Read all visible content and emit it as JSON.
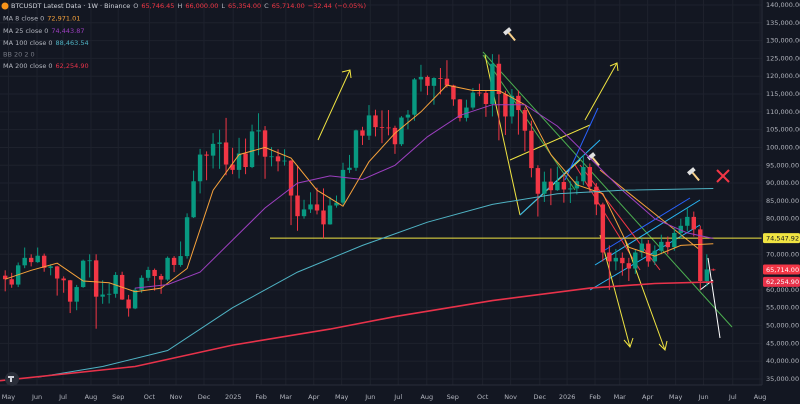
{
  "chart_data": {
    "type": "candlestick",
    "title": "BTCUSDT Latest Data · 1W · Binance",
    "ohlc_legend": [
      {
        "key": "O",
        "value": 65746.45,
        "label": "65,746.45"
      },
      {
        "key": "H",
        "value": 66000,
        "label": "66,000.00"
      },
      {
        "key": "L",
        "value": 65354,
        "label": "65,354.00"
      },
      {
        "key": "C",
        "value": 65714,
        "label": "65,714.00"
      }
    ],
    "change": {
      "value": -32.44,
      "label": "−32.44"
    },
    "change_percent": {
      "value": -0.05,
      "label": "(−0.05%)"
    },
    "up_color": "#089981",
    "down_color": "#f23645",
    "ohlc": [
      [
        64000,
        65500,
        59600,
        63000
      ],
      [
        63000,
        64800,
        60600,
        61500
      ],
      [
        61500,
        67700,
        60800,
        66900
      ],
      [
        66900,
        71900,
        66100,
        69000
      ],
      [
        69000,
        70000,
        66600,
        67800
      ],
      [
        67800,
        71900,
        67600,
        69600
      ],
      [
        69600,
        70200,
        65100,
        66200
      ],
      [
        66200,
        67200,
        64100,
        66600
      ],
      [
        66600,
        66800,
        58400,
        63200
      ],
      [
        63200,
        63800,
        59200,
        62700
      ],
      [
        62700,
        62800,
        53500,
        56700
      ],
      [
        56700,
        61400,
        54300,
        60800
      ],
      [
        60800,
        68500,
        60600,
        68200
      ],
      [
        68200,
        70000,
        63500,
        68300
      ],
      [
        68300,
        70000,
        49100,
        58100
      ],
      [
        58100,
        62700,
        56100,
        58700
      ],
      [
        58700,
        61800,
        56200,
        58900
      ],
      [
        58900,
        65000,
        57800,
        64200
      ],
      [
        64200,
        65100,
        57200,
        57300
      ],
      [
        57300,
        58600,
        52500,
        54800
      ],
      [
        54800,
        60600,
        54600,
        60000
      ],
      [
        60000,
        64100,
        59200,
        63400
      ],
      [
        63400,
        66500,
        62500,
        65600
      ],
      [
        65600,
        66000,
        59800,
        63900
      ],
      [
        63900,
        64500,
        58900,
        62900
      ],
      [
        62900,
        69400,
        62500,
        69000
      ],
      [
        69000,
        69500,
        65000,
        67000
      ],
      [
        67000,
        73600,
        66500,
        69500
      ],
      [
        69500,
        81500,
        68800,
        80400
      ],
      [
        80400,
        93500,
        80200,
        90500
      ],
      [
        90500,
        99600,
        87100,
        98000
      ],
      [
        98000,
        98900,
        90800,
        97700
      ],
      [
        97700,
        104000,
        94100,
        101000
      ],
      [
        101000,
        105000,
        94000,
        101400
      ],
      [
        101400,
        108300,
        92200,
        95200
      ],
      [
        95200,
        99900,
        92500,
        93700
      ],
      [
        93700,
        102700,
        91300,
        98300
      ],
      [
        98300,
        102500,
        92500,
        94500
      ],
      [
        94500,
        106400,
        94200,
        104500
      ],
      [
        104500,
        109600,
        97800,
        104800
      ],
      [
        104800,
        106000,
        91200,
        97400
      ],
      [
        97400,
        100100,
        94700,
        97500
      ],
      [
        97500,
        99500,
        93300,
        96100
      ],
      [
        96100,
        99500,
        94900,
        96300
      ],
      [
        96300,
        96500,
        78200,
        86500
      ],
      [
        86500,
        95000,
        76600,
        80700
      ],
      [
        80700,
        85300,
        80000,
        82600
      ],
      [
        82600,
        87400,
        81600,
        84000
      ],
      [
        84000,
        88700,
        81200,
        82300
      ],
      [
        82300,
        88500,
        74500,
        78400
      ],
      [
        78400,
        86100,
        78300,
        83700
      ],
      [
        83700,
        86500,
        83100,
        84500
      ],
      [
        84500,
        95700,
        83900,
        93700
      ],
      [
        93700,
        97900,
        92800,
        94300
      ],
      [
        94300,
        105000,
        93400,
        104800
      ],
      [
        104800,
        105800,
        100700,
        103300
      ],
      [
        103300,
        111900,
        102100,
        109000
      ],
      [
        109000,
        110600,
        103100,
        105700
      ],
      [
        105700,
        110400,
        101200,
        105600
      ],
      [
        105600,
        110500,
        103400,
        105500
      ],
      [
        105500,
        106100,
        98200,
        100900
      ],
      [
        100900,
        108800,
        100400,
        108400
      ],
      [
        108400,
        110500,
        105100,
        109200
      ],
      [
        109200,
        119500,
        107500,
        119100
      ],
      [
        119100,
        123200,
        115700,
        119800
      ],
      [
        119800,
        120200,
        114700,
        117300
      ],
      [
        117300,
        119700,
        112000,
        119500
      ],
      [
        119500,
        122300,
        114900,
        119300
      ],
      [
        119300,
        124500,
        116800,
        117400
      ],
      [
        117400,
        117600,
        111700,
        113500
      ],
      [
        113500,
        113600,
        107300,
        108300
      ],
      [
        108300,
        113400,
        107300,
        111200
      ],
      [
        111200,
        116700,
        110600,
        115400
      ],
      [
        115400,
        117900,
        114400,
        115300
      ],
      [
        115300,
        115900,
        108600,
        112200
      ],
      [
        112200,
        126200,
        108700,
        123500
      ],
      [
        123500,
        126100,
        102000,
        115000
      ],
      [
        115000,
        115900,
        103500,
        108700
      ],
      [
        108700,
        116400,
        106700,
        114500
      ],
      [
        114500,
        116000,
        103600,
        110500
      ],
      [
        110500,
        111200,
        98900,
        104700
      ],
      [
        104700,
        107500,
        91600,
        94200
      ],
      [
        94200,
        95000,
        80600,
        87000
      ],
      [
        87000,
        93200,
        84700,
        90400
      ],
      [
        90400,
        94100,
        83800,
        88000
      ],
      [
        88000,
        94600,
        87800,
        90300
      ],
      [
        90300,
        92600,
        84500,
        88200
      ],
      [
        88200,
        90500,
        84400,
        88500
      ],
      [
        88500,
        91900,
        86800,
        90500
      ],
      [
        90500,
        97900,
        89400,
        94500
      ],
      [
        94500,
        95500,
        87300,
        89000
      ],
      [
        89000,
        90000,
        81000,
        84000
      ],
      [
        84000,
        84500,
        68000,
        70500
      ],
      [
        70500,
        72500,
        60000,
        68000
      ],
      [
        68000,
        71500,
        65500,
        69000
      ],
      [
        69000,
        70500,
        64000,
        67500
      ],
      [
        67500,
        69000,
        62500,
        66000
      ],
      [
        66000,
        71500,
        64500,
        70500
      ],
      [
        70500,
        74500,
        69000,
        73000
      ],
      [
        73000,
        74000,
        66500,
        68000
      ],
      [
        68000,
        72500,
        67000,
        71000
      ],
      [
        71000,
        75500,
        70000,
        73500
      ],
      [
        73500,
        75000,
        70000,
        72000
      ],
      [
        72000,
        77500,
        71000,
        76000
      ],
      [
        76000,
        80000,
        74500,
        78000
      ],
      [
        78000,
        83000,
        76500,
        80500
      ],
      [
        80500,
        82000,
        75000,
        77000
      ],
      [
        77000,
        78000,
        60000,
        62500
      ],
      [
        62500,
        70000,
        61000,
        65746.45
      ],
      [
        65746.45,
        66000,
        65354,
        65714
      ]
    ],
    "indicators": [
      {
        "name": "MA 8 close 0",
        "value": 72971.01,
        "value_label": "72,971.01",
        "color": "#f7a23b",
        "x": [
          0,
          4,
          8,
          12,
          16,
          20,
          24,
          28,
          32,
          36,
          40,
          44,
          48,
          52,
          56,
          60,
          64,
          68,
          72,
          76,
          80,
          84,
          88,
          92,
          96,
          100,
          104,
          109
        ],
        "values": [
          63000,
          65500,
          67500,
          62500,
          62000,
          59500,
          60500,
          66000,
          88000,
          98000,
          100000,
          97000,
          88000,
          83500,
          96000,
          104000,
          110000,
          117500,
          116000,
          116000,
          112000,
          98000,
          89500,
          87000,
          72000,
          69500,
          72500,
          72971.01
        ]
      },
      {
        "name": "MA 25 close 0",
        "value": 74443.87,
        "value_label": "74,443.87",
        "color": "#9c3fbf",
        "x": [
          20,
          25,
          30,
          35,
          40,
          45,
          50,
          55,
          60,
          65,
          70,
          75,
          80,
          85,
          90,
          95,
          100,
          105,
          109
        ],
        "values": [
          60500,
          61500,
          65000,
          74000,
          83000,
          90000,
          92000,
          91000,
          95000,
          103000,
          109000,
          112000,
          112000,
          106000,
          97000,
          88000,
          80000,
          76000,
          74443.87
        ]
      },
      {
        "name": "MA 100 close 0",
        "value": 88463.54,
        "value_label": "88,463.54",
        "color": "#4fb3c4",
        "x": [
          5,
          15,
          25,
          35,
          45,
          55,
          65,
          75,
          85,
          95,
          109
        ],
        "values": [
          35500,
          38500,
          43000,
          55000,
          65000,
          72500,
          79000,
          84000,
          87000,
          88000,
          88463.54
        ]
      },
      {
        "name": "MA 200 close 0",
        "value": 62254.9,
        "value_label": "62,254.90",
        "color": "#e8324a",
        "x": [
          -0.8,
          20,
          35,
          50,
          60,
          75,
          90,
          100,
          109
        ],
        "values": [
          34500,
          38500,
          44500,
          49000,
          52500,
          57000,
          60500,
          61800,
          62254.9
        ]
      }
    ],
    "bb_label": "BB 20 2 0",
    "price_tags": [
      {
        "value": 74547.92,
        "label": "74,547.92",
        "color": "#f0e442"
      },
      {
        "value": 65714,
        "label": "65,714.00",
        "color": "#f23645"
      },
      {
        "value": 62254.9,
        "label": "62,254.90",
        "color": "#e8324a"
      }
    ],
    "xlim": [
      -0.8,
      116.5
    ],
    "xticks": [
      {
        "value": 0.5,
        "label": "May"
      },
      {
        "value": 4.9,
        "label": "Jun"
      },
      {
        "value": 8.9,
        "label": "Jul"
      },
      {
        "value": 13.2,
        "label": "Aug"
      },
      {
        "value": 17.4,
        "label": "Sep"
      },
      {
        "value": 22.2,
        "label": "Oct"
      },
      {
        "value": 26.3,
        "label": "Nov"
      },
      {
        "value": 30.6,
        "label": "Dec"
      },
      {
        "value": 35.1,
        "label": "2025"
      },
      {
        "value": 39.4,
        "label": "Feb"
      },
      {
        "value": 43.2,
        "label": "Mar"
      },
      {
        "value": 47.5,
        "label": "Apr"
      },
      {
        "value": 51.8,
        "label": "May"
      },
      {
        "value": 56.2,
        "label": "Jun"
      },
      {
        "value": 60.5,
        "label": "Jul"
      },
      {
        "value": 64.9,
        "label": "Aug"
      },
      {
        "value": 68.9,
        "label": "Sep"
      },
      {
        "value": 73.5,
        "label": "Oct"
      },
      {
        "value": 77.8,
        "label": "Nov"
      },
      {
        "value": 82.3,
        "label": "Dec"
      },
      {
        "value": 86.5,
        "label": "2026"
      },
      {
        "value": 90.8,
        "label": "Feb"
      },
      {
        "value": 94.6,
        "label": "Mar"
      },
      {
        "value": 98.9,
        "label": "Apr"
      },
      {
        "value": 103.2,
        "label": "May"
      },
      {
        "value": 107.5,
        "label": "Jun"
      },
      {
        "value": 112,
        "label": "Jul"
      },
      {
        "value": 116.2,
        "label": "Aug"
      }
    ],
    "ylim": [
      33300,
      141400
    ],
    "yticks": [
      {
        "value": 140000,
        "label": "140,000.00"
      },
      {
        "value": 135000,
        "label": "135,000.00"
      },
      {
        "value": 130000,
        "label": "130,000.00"
      },
      {
        "value": 125000,
        "label": "125,000.00"
      },
      {
        "value": 120000,
        "label": "120,000.00"
      },
      {
        "value": 115000,
        "label": "115,000.00"
      },
      {
        "value": 110000,
        "label": "110,000.00"
      },
      {
        "value": 105000,
        "label": "105,000.00"
      },
      {
        "value": 100000,
        "label": "100,000.00"
      },
      {
        "value": 95000,
        "label": "95,000.00"
      },
      {
        "value": 90000,
        "label": "90,000.00"
      },
      {
        "value": 85000,
        "label": "85,000.00"
      },
      {
        "value": 80000,
        "label": "80,000.00"
      },
      {
        "value": 70000,
        "label": "70,000.00"
      },
      {
        "value": 60000,
        "label": "60,000.00"
      },
      {
        "value": 55000,
        "label": "55,000.00"
      },
      {
        "value": 50000,
        "label": "50,000.00"
      },
      {
        "value": 45000,
        "label": "45,000.00"
      },
      {
        "value": 40000,
        "label": "40,000.00"
      },
      {
        "value": 35000,
        "label": "35,000.00"
      }
    ],
    "grid": true
  }
}
